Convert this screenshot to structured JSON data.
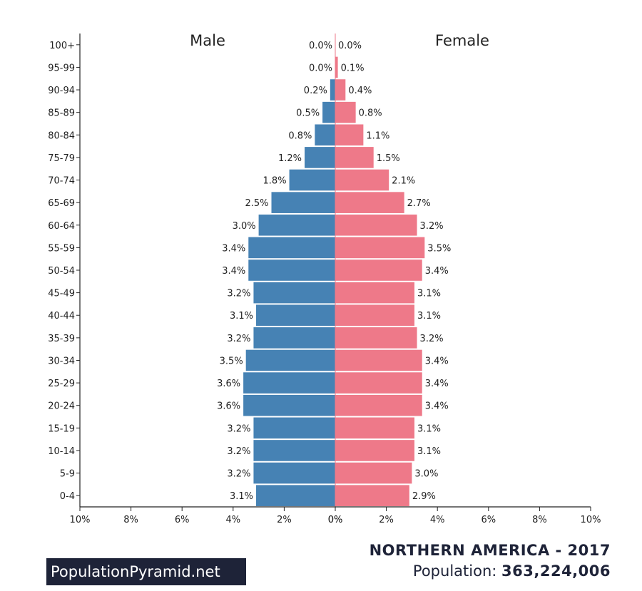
{
  "footer": {
    "brand": "PopulationPyramid.net",
    "region_year": "NORTHERN AMERICA - 2017",
    "population_label": "Population:",
    "population_value": "363,224,006"
  },
  "chart_data": {
    "type": "bar",
    "orientation": "horizontal-pyramid",
    "categories": [
      "100+",
      "95-99",
      "90-94",
      "85-89",
      "80-84",
      "75-79",
      "70-74",
      "65-69",
      "60-64",
      "55-59",
      "50-54",
      "45-49",
      "40-44",
      "35-39",
      "30-34",
      "25-29",
      "20-24",
      "15-19",
      "10-14",
      "5-9",
      "0-4"
    ],
    "series": [
      {
        "name": "Male",
        "color": "#4682b4",
        "values": [
          0.0,
          0.0,
          0.2,
          0.5,
          0.8,
          1.2,
          1.8,
          2.5,
          3.0,
          3.4,
          3.4,
          3.2,
          3.1,
          3.2,
          3.5,
          3.6,
          3.6,
          3.2,
          3.2,
          3.2,
          3.1
        ],
        "labels": [
          "0.0%",
          "0.0%",
          "0.2%",
          "0.5%",
          "0.8%",
          "1.2%",
          "1.8%",
          "2.5%",
          "3.0%",
          "3.4%",
          "3.4%",
          "3.2%",
          "3.1%",
          "3.2%",
          "3.5%",
          "3.6%",
          "3.6%",
          "3.2%",
          "3.2%",
          "3.2%",
          "3.1%"
        ]
      },
      {
        "name": "Female",
        "color": "#ee7989",
        "values": [
          0.0,
          0.1,
          0.4,
          0.8,
          1.1,
          1.5,
          2.1,
          2.7,
          3.2,
          3.5,
          3.4,
          3.1,
          3.1,
          3.2,
          3.4,
          3.4,
          3.4,
          3.1,
          3.1,
          3.0,
          2.9
        ],
        "labels": [
          "0.0%",
          "0.1%",
          "0.4%",
          "0.8%",
          "1.1%",
          "1.5%",
          "2.1%",
          "2.7%",
          "3.2%",
          "3.5%",
          "3.4%",
          "3.1%",
          "3.1%",
          "3.2%",
          "3.4%",
          "3.4%",
          "3.4%",
          "3.1%",
          "3.1%",
          "3.0%",
          "2.9%"
        ]
      }
    ],
    "xlim": [
      -10,
      10
    ],
    "x_ticks": [
      "10%",
      "8%",
      "6%",
      "4%",
      "2%",
      "0%",
      "0%",
      "2%",
      "4%",
      "6%",
      "8%",
      "10%"
    ],
    "grid": false,
    "title": "NORTHERN AMERICA - 2017",
    "xlabel": "",
    "ylabel": ""
  }
}
